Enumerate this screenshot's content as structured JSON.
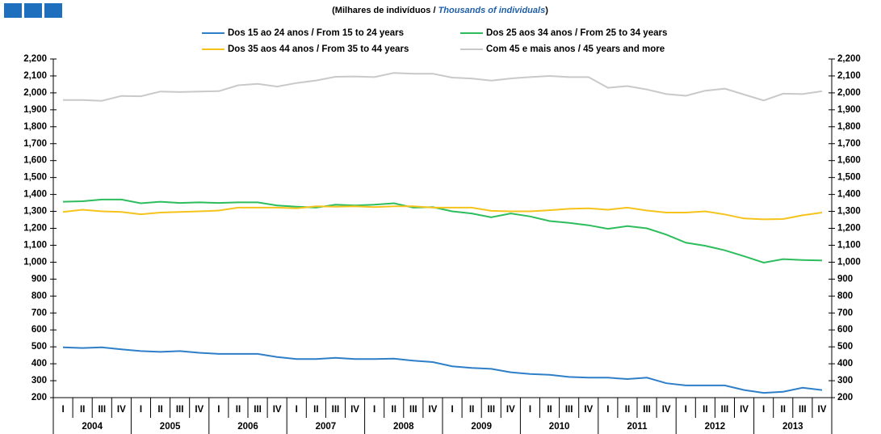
{
  "chart_data": {
    "type": "line",
    "subtitle": [
      "(Milhares de indivíduos  /",
      "Thousands of individuals",
      ")"
    ],
    "categories": [
      "I",
      "II",
      "III",
      "IV",
      "I",
      "II",
      "III",
      "IV",
      "I",
      "II",
      "III",
      "IV",
      "I",
      "II",
      "III",
      "IV",
      "I",
      "II",
      "III",
      "IV",
      "I",
      "II",
      "III",
      "IV",
      "I",
      "II",
      "III",
      "IV",
      "I",
      "II",
      "III",
      "IV",
      "I",
      "II",
      "III",
      "IV",
      "I",
      "II",
      "III",
      "IV"
    ],
    "years": [
      "2004",
      "2005",
      "2006",
      "2007",
      "2008",
      "2009",
      "2010",
      "2011",
      "2012",
      "2013"
    ],
    "series": [
      {
        "name": "Dos 15 ao 24 anos / From 15 to 24 years",
        "color": "#2f7fc8",
        "values": [
          497,
          493,
          497,
          485,
          475,
          470,
          475,
          465,
          458,
          458,
          458,
          440,
          428,
          428,
          435,
          428,
          428,
          430,
          418,
          410,
          385,
          375,
          370,
          350,
          340,
          335,
          322,
          318,
          318,
          310,
          318,
          285,
          272,
          272,
          272,
          245,
          228,
          235,
          258,
          245
        ]
      },
      {
        "name": "Dos 25 aos 34 anos / From 25 to 34 years",
        "color": "#2dbd5c",
        "values": [
          1357,
          1360,
          1370,
          1370,
          1348,
          1357,
          1350,
          1353,
          1350,
          1353,
          1353,
          1335,
          1328,
          1322,
          1340,
          1335,
          1340,
          1348,
          1322,
          1325,
          1300,
          1288,
          1265,
          1288,
          1270,
          1243,
          1232,
          1218,
          1197,
          1213,
          1200,
          1163,
          1115,
          1097,
          1070,
          1035,
          997,
          1018,
          1013,
          1010
        ]
      },
      {
        "name": "Dos 35 aos 44 anos / From 35 to 44 years",
        "color": "#f6c31c",
        "values": [
          1297,
          1310,
          1300,
          1297,
          1283,
          1293,
          1297,
          1300,
          1305,
          1322,
          1322,
          1322,
          1318,
          1330,
          1328,
          1330,
          1325,
          1330,
          1330,
          1322,
          1322,
          1322,
          1303,
          1300,
          1300,
          1307,
          1315,
          1318,
          1310,
          1322,
          1305,
          1293,
          1293,
          1300,
          1282,
          1258,
          1253,
          1255,
          1277,
          1293
        ]
      },
      {
        "name": "Com 45 e mais anos / 45 years and more",
        "color": "#c9c9c9",
        "values": [
          1958,
          1958,
          1953,
          1982,
          1980,
          2008,
          2005,
          2008,
          2010,
          2045,
          2053,
          2037,
          2058,
          2073,
          2095,
          2097,
          2093,
          2118,
          2113,
          2113,
          2090,
          2085,
          2072,
          2085,
          2093,
          2100,
          2093,
          2093,
          2030,
          2040,
          2020,
          1993,
          1983,
          2013,
          2025,
          1990,
          1955,
          1995,
          1993,
          2010
        ]
      }
    ],
    "ylim": [
      200,
      2200
    ],
    "yticks": [
      200,
      300,
      400,
      500,
      600,
      700,
      800,
      900,
      {
        "value": 1000,
        "label": "1,000"
      },
      {
        "value": 1100,
        "label": "1,100"
      },
      {
        "value": 1200,
        "label": "1,200"
      },
      {
        "value": 1300,
        "label": "1,300"
      },
      {
        "value": 1400,
        "label": "1,400"
      },
      {
        "value": 1500,
        "label": "1,500"
      },
      {
        "value": 1600,
        "label": "1,600"
      },
      {
        "value": 1700,
        "label": "1,700"
      },
      {
        "value": 1800,
        "label": "1,800"
      },
      {
        "value": 1900,
        "label": "1,900"
      },
      {
        "value": 2000,
        "label": "2,000"
      },
      {
        "value": 2100,
        "label": "2,100"
      },
      {
        "value": 2200,
        "label": "2,200"
      }
    ]
  }
}
